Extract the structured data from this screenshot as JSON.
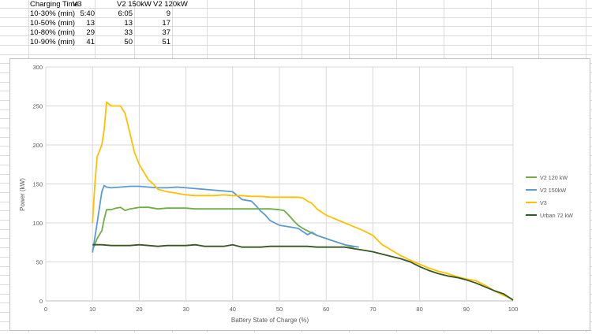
{
  "table": {
    "headers": [
      "Charging Time",
      "V3",
      "V2 150kW",
      "V2 120kW"
    ],
    "rows": [
      [
        "10-30% (min)",
        "5:40",
        "6:05",
        "9"
      ],
      [
        "10-50% (min)",
        "13",
        "13",
        "17"
      ],
      [
        "10-80% (min)",
        "29",
        "33",
        "37"
      ],
      [
        "10-90% (min)",
        "41",
        "50",
        "51"
      ]
    ]
  },
  "chart_data": {
    "type": "line",
    "xlabel": "Battery State of Charge (%)",
    "ylabel": "Power (kW)",
    "xlim": [
      0,
      100
    ],
    "ylim": [
      0,
      300
    ],
    "xticks": [
      0,
      10,
      20,
      30,
      40,
      50,
      60,
      70,
      80,
      90,
      100
    ],
    "yticks": [
      0,
      50,
      100,
      150,
      200,
      250,
      300
    ],
    "grid": true,
    "legend": "right",
    "series": [
      {
        "name": "V2 120 kW",
        "color": "#70ad47",
        "points": [
          [
            10,
            65
          ],
          [
            11,
            80
          ],
          [
            12,
            90
          ],
          [
            12.5,
            105
          ],
          [
            13,
            117
          ],
          [
            14,
            117
          ],
          [
            15,
            119
          ],
          [
            16,
            120
          ],
          [
            17,
            116
          ],
          [
            18,
            118
          ],
          [
            20,
            120
          ],
          [
            22,
            120
          ],
          [
            24,
            118
          ],
          [
            26,
            119
          ],
          [
            28,
            119
          ],
          [
            30,
            119
          ],
          [
            32,
            118
          ],
          [
            34,
            118
          ],
          [
            36,
            118
          ],
          [
            38,
            118
          ],
          [
            40,
            118
          ],
          [
            42,
            118
          ],
          [
            44,
            118
          ],
          [
            46,
            118
          ],
          [
            48,
            118
          ],
          [
            50,
            117
          ],
          [
            51,
            116
          ],
          [
            52,
            110
          ],
          [
            53,
            103
          ],
          [
            54,
            97
          ],
          [
            55,
            93
          ],
          [
            56,
            90
          ],
          [
            57,
            87
          ],
          [
            58,
            84
          ],
          [
            60,
            80
          ],
          [
            62,
            76
          ],
          [
            64,
            72
          ],
          [
            65,
            70
          ],
          [
            66,
            69
          ]
        ]
      },
      {
        "name": "V2 150kW",
        "color": "#5b9bd5",
        "points": [
          [
            10,
            62
          ],
          [
            11,
            100
          ],
          [
            12,
            140
          ],
          [
            12.5,
            148
          ],
          [
            13,
            146
          ],
          [
            14,
            145
          ],
          [
            16,
            146
          ],
          [
            18,
            147
          ],
          [
            20,
            147
          ],
          [
            22,
            146
          ],
          [
            24,
            145
          ],
          [
            26,
            145
          ],
          [
            28,
            146
          ],
          [
            30,
            145
          ],
          [
            32,
            144
          ],
          [
            34,
            143
          ],
          [
            36,
            142
          ],
          [
            38,
            141
          ],
          [
            40,
            140
          ],
          [
            41,
            135
          ],
          [
            42,
            130
          ],
          [
            44,
            128
          ],
          [
            45,
            122
          ],
          [
            46,
            115
          ],
          [
            47,
            110
          ],
          [
            48,
            103
          ],
          [
            49,
            100
          ],
          [
            50,
            97
          ],
          [
            52,
            95
          ],
          [
            54,
            93
          ],
          [
            55,
            89
          ],
          [
            56,
            85
          ],
          [
            57,
            88
          ],
          [
            58,
            84
          ],
          [
            60,
            80
          ],
          [
            62,
            76
          ],
          [
            64,
            72
          ],
          [
            66,
            70
          ],
          [
            67,
            69
          ]
        ]
      },
      {
        "name": "V3",
        "color": "#ffc000",
        "points": [
          [
            10,
            100
          ],
          [
            10.5,
            150
          ],
          [
            11,
            185
          ],
          [
            12,
            200
          ],
          [
            12.5,
            220
          ],
          [
            13,
            255
          ],
          [
            14,
            250
          ],
          [
            15,
            250
          ],
          [
            16,
            250
          ],
          [
            17,
            240
          ],
          [
            18,
            215
          ],
          [
            19,
            190
          ],
          [
            20,
            175
          ],
          [
            21,
            165
          ],
          [
            22,
            155
          ],
          [
            23,
            150
          ],
          [
            24,
            143
          ],
          [
            26,
            140
          ],
          [
            28,
            138
          ],
          [
            30,
            136
          ],
          [
            32,
            135
          ],
          [
            34,
            135
          ],
          [
            36,
            135
          ],
          [
            38,
            136
          ],
          [
            40,
            135
          ],
          [
            42,
            135
          ],
          [
            44,
            134
          ],
          [
            46,
            134
          ],
          [
            48,
            133
          ],
          [
            50,
            133
          ],
          [
            52,
            133
          ],
          [
            54,
            133
          ],
          [
            55,
            132
          ],
          [
            56,
            128
          ],
          [
            57,
            125
          ],
          [
            58,
            118
          ],
          [
            60,
            110
          ],
          [
            62,
            105
          ],
          [
            64,
            100
          ],
          [
            66,
            95
          ],
          [
            68,
            90
          ],
          [
            70,
            84
          ],
          [
            72,
            72
          ],
          [
            74,
            65
          ],
          [
            76,
            58
          ],
          [
            78,
            52
          ],
          [
            80,
            47
          ],
          [
            82,
            42
          ],
          [
            84,
            38
          ],
          [
            86,
            35
          ],
          [
            88,
            31
          ],
          [
            90,
            28
          ],
          [
            92,
            26
          ],
          [
            94,
            20
          ],
          [
            96,
            13
          ],
          [
            98,
            7
          ],
          [
            100,
            2
          ]
        ]
      },
      {
        "name": "Urban 72 kW",
        "color": "#375623",
        "points": [
          [
            10,
            72
          ],
          [
            12,
            72
          ],
          [
            14,
            71
          ],
          [
            16,
            71
          ],
          [
            18,
            71
          ],
          [
            20,
            72
          ],
          [
            22,
            71
          ],
          [
            24,
            70
          ],
          [
            26,
            71
          ],
          [
            28,
            71
          ],
          [
            30,
            71
          ],
          [
            32,
            72
          ],
          [
            34,
            70
          ],
          [
            36,
            70
          ],
          [
            38,
            70
          ],
          [
            40,
            72
          ],
          [
            42,
            69
          ],
          [
            44,
            69
          ],
          [
            46,
            69
          ],
          [
            48,
            70
          ],
          [
            50,
            70
          ],
          [
            52,
            70
          ],
          [
            54,
            70
          ],
          [
            56,
            70
          ],
          [
            58,
            69
          ],
          [
            60,
            69
          ],
          [
            62,
            69
          ],
          [
            64,
            69
          ],
          [
            66,
            67
          ],
          [
            68,
            65
          ],
          [
            70,
            63
          ],
          [
            72,
            60
          ],
          [
            74,
            57
          ],
          [
            76,
            54
          ],
          [
            78,
            50
          ],
          [
            80,
            44
          ],
          [
            82,
            39
          ],
          [
            84,
            35
          ],
          [
            86,
            32
          ],
          [
            88,
            30
          ],
          [
            90,
            27
          ],
          [
            92,
            23
          ],
          [
            94,
            18
          ],
          [
            96,
            13
          ],
          [
            98,
            9
          ],
          [
            100,
            1
          ]
        ]
      }
    ]
  }
}
